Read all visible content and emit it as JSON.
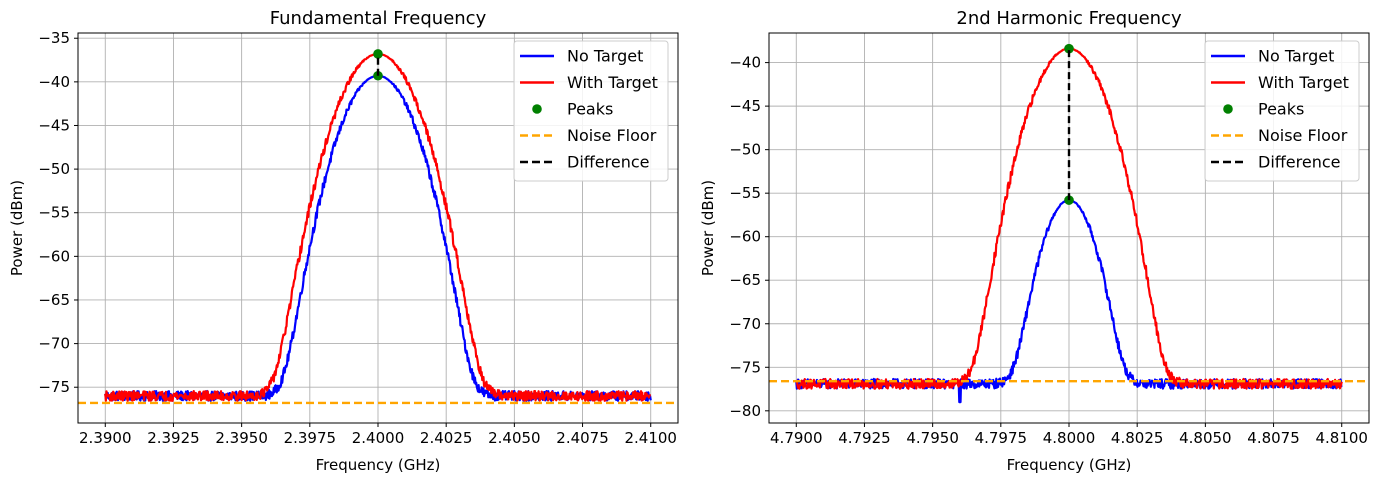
{
  "chart_data": [
    {
      "type": "line",
      "title": "Fundamental Frequency",
      "xlabel": "Frequency (GHz)",
      "ylabel": "Power (dBm)",
      "xlim": [
        2.389,
        2.411
      ],
      "ylim": [
        -79.1,
        -34.4
      ],
      "xticks": [
        2.39,
        2.3925,
        2.395,
        2.3975,
        2.4,
        2.4025,
        2.405,
        2.4075,
        2.41
      ],
      "xtick_labels": [
        "2.3900",
        "2.3925",
        "2.3950",
        "2.3975",
        "2.4000",
        "2.4025",
        "2.4050",
        "2.4075",
        "2.4100"
      ],
      "yticks": [
        -75,
        -70,
        -65,
        -60,
        -55,
        -50,
        -45,
        -40,
        -35
      ],
      "ytick_labels": [
        "−75",
        "−70",
        "−65",
        "−60",
        "−55",
        "−50",
        "−45",
        "−40",
        "−35"
      ],
      "grid": true,
      "legend_position": "top-right",
      "center_ghz": 2.4,
      "series": [
        {
          "name": "No Target",
          "color": "#0000ff",
          "style": "solid",
          "peak": -39.3,
          "sigma_ghz": 0.00083,
          "floor": -76.0,
          "noise": 0.35
        },
        {
          "name": "With Target",
          "color": "#ff0000",
          "style": "solid",
          "peak": -36.8,
          "sigma_ghz": 0.00088,
          "floor": -76.0,
          "noise": 0.35
        },
        {
          "name": "Peaks",
          "color": "#008000",
          "style": "marker",
          "points": [
            [
              2.4,
              -39.3
            ],
            [
              2.4,
              -36.8
            ]
          ]
        },
        {
          "name": "Noise Floor",
          "color": "#ffa500",
          "style": "dashed",
          "y": -76.8
        },
        {
          "name": "Difference",
          "color": "#000000",
          "style": "dashed",
          "x": 2.4,
          "y_from": -39.3,
          "y_to": -36.8
        }
      ]
    },
    {
      "type": "line",
      "title": "2nd Harmonic Frequency",
      "xlabel": "Frequency (GHz)",
      "ylabel": "Power (dBm)",
      "xlim": [
        4.789,
        4.811
      ],
      "ylim": [
        -81.4,
        -36.6
      ],
      "xticks": [
        4.79,
        4.7925,
        4.795,
        4.7975,
        4.8,
        4.8025,
        4.805,
        4.8075,
        4.81
      ],
      "xtick_labels": [
        "4.7900",
        "4.7925",
        "4.7950",
        "4.7975",
        "4.8000",
        "4.8025",
        "4.8050",
        "4.8075",
        "4.8100"
      ],
      "yticks": [
        -80,
        -75,
        -70,
        -65,
        -60,
        -55,
        -50,
        -45,
        -40
      ],
      "ytick_labels": [
        "−80",
        "−75",
        "−70",
        "−65",
        "−60",
        "−55",
        "−50",
        "−45",
        "−40"
      ],
      "grid": true,
      "legend_position": "top-right",
      "center_ghz": 4.8,
      "series": [
        {
          "name": "No Target",
          "color": "#0000ff",
          "style": "solid",
          "peak": -55.8,
          "sigma_ghz": 0.00062,
          "floor": -76.9,
          "noise": 0.35,
          "dip": [
            4.796,
            -79.0
          ]
        },
        {
          "name": "With Target",
          "color": "#ff0000",
          "style": "solid",
          "peak": -38.4,
          "sigma_ghz": 0.00082,
          "floor": -76.9,
          "noise": 0.35
        },
        {
          "name": "Peaks",
          "color": "#008000",
          "style": "marker",
          "points": [
            [
              4.8,
              -55.8
            ],
            [
              4.8,
              -38.4
            ]
          ]
        },
        {
          "name": "Noise Floor",
          "color": "#ffa500",
          "style": "dashed",
          "y": -76.6
        },
        {
          "name": "Difference",
          "color": "#000000",
          "style": "dashed",
          "x": 4.8,
          "y_from": -55.8,
          "y_to": -38.4
        }
      ]
    }
  ]
}
